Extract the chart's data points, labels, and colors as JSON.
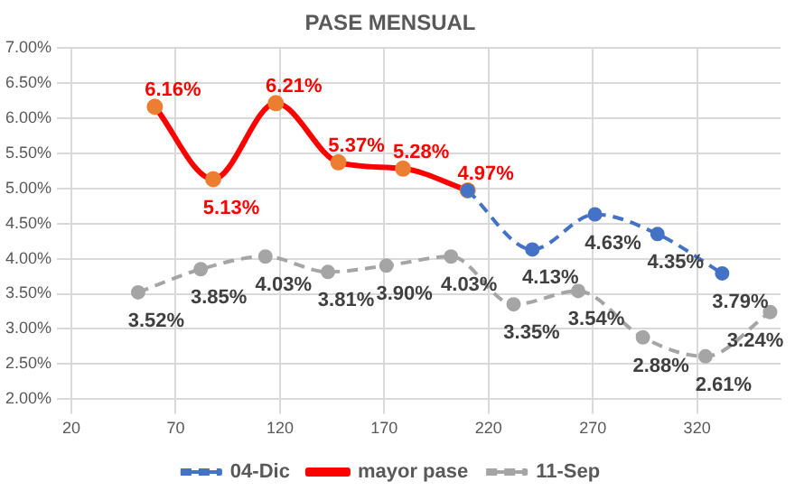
{
  "chart_data": {
    "type": "line",
    "title": "PASE MENSUAL",
    "xlim": [
      20,
      360
    ],
    "xticks": [
      20,
      70,
      120,
      170,
      220,
      270,
      320
    ],
    "ylim": [
      2,
      7
    ],
    "yticks": [
      {
        "value": 2,
        "label": "2.00%"
      },
      {
        "value": 2.5,
        "label": "2.50%"
      },
      {
        "value": 3,
        "label": "3.00%"
      },
      {
        "value": 3.5,
        "label": "3.50%"
      },
      {
        "value": 4,
        "label": "4.00%"
      },
      {
        "value": 4.5,
        "label": "4.50%"
      },
      {
        "value": 5,
        "label": "5.00%"
      },
      {
        "value": 5.5,
        "label": "5.50%"
      },
      {
        "value": 6,
        "label": "6.00%"
      },
      {
        "value": 6.5,
        "label": "6.50%"
      },
      {
        "value": 7,
        "label": "7.00%"
      }
    ],
    "grid": true,
    "legend": "bottom",
    "marker": "circle",
    "series": [
      {
        "name": "04-Dic",
        "color": "#4472c4",
        "line_style": "dashed",
        "x": [
          210,
          241,
          271,
          301,
          332
        ],
        "values": [
          4.97,
          4.13,
          4.63,
          4.35,
          3.79
        ],
        "value_labels": [
          null,
          "4.13%",
          "4.63%",
          "4.35%",
          "3.79%"
        ]
      },
      {
        "name": "mayor pase",
        "color": "#ff0000",
        "line_style": "solid",
        "colors": [
          "#ed7d31",
          "#ed7d31",
          "#ed7d31",
          "#ed7d31",
          "#ed7d31",
          "#ed7d31"
        ],
        "x": [
          60,
          88,
          118,
          148,
          179,
          210
        ],
        "values": [
          6.16,
          5.13,
          6.21,
          5.37,
          5.28,
          4.97
        ],
        "value_labels": [
          "6.16%",
          "5.13%",
          "6.21%",
          "5.37%",
          "5.28%",
          "4.97%"
        ]
      },
      {
        "name": "11-Sep",
        "color": "#a5a5a5",
        "line_style": "dashed",
        "x": [
          52,
          82,
          113,
          143,
          171,
          202,
          232,
          263,
          294,
          324,
          355
        ],
        "values": [
          3.52,
          3.85,
          4.03,
          3.81,
          3.9,
          4.03,
          3.35,
          3.54,
          2.88,
          2.61,
          3.24
        ],
        "value_labels": [
          "3.52%",
          "3.85%",
          "4.03%",
          "3.81%",
          "3.90%",
          "4.03%",
          "3.35%",
          "3.54%",
          "2.88%",
          "2.61%",
          "3.24%"
        ]
      }
    ]
  }
}
